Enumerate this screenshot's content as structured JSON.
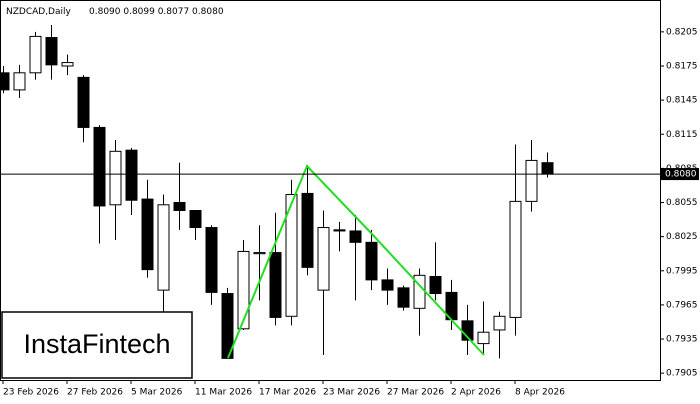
{
  "chart_data": {
    "type": "candlestick",
    "title": "NZDCAD,Daily",
    "subtitle": "0.8090 0.8099 0.8077 0.8080",
    "logo": "InstaFintech",
    "categories": [
      "23 Feb 2026",
      null,
      null,
      null,
      "27 Feb 2026",
      null,
      null,
      null,
      "5 Mar 2026",
      null,
      null,
      null,
      "11 Mar 2026",
      null,
      null,
      null,
      "17 Mar 2026",
      null,
      null,
      null,
      "23 Mar 2026",
      null,
      null,
      null,
      "27 Mar 2026",
      null,
      null,
      null,
      "2 Apr 2026",
      null,
      null,
      null,
      "8 Apr 2026",
      null,
      null
    ],
    "open": [
      0.8169,
      0.8154,
      0.8169,
      0.82,
      0.8175,
      0.8165,
      0.8121,
      0.8053,
      0.8101,
      0.8058,
      0.7978,
      0.8055,
      0.8048,
      0.8033,
      0.7975,
      0.7944,
      0.801,
      0.8011,
      0.7955,
      0.8063,
      0.7978,
      0.8031,
      0.803,
      0.802,
      0.7987,
      0.798,
      0.7962,
      0.799,
      0.7976,
      0.7951,
      0.7931,
      0.7943,
      0.7954,
      0.8056,
      0.809
    ],
    "high": [
      0.8175,
      0.8176,
      0.8205,
      0.8211,
      0.8185,
      0.8167,
      0.8123,
      0.811,
      0.8103,
      0.8075,
      0.8062,
      0.809,
      0.8048,
      0.8035,
      0.798,
      0.8022,
      0.8035,
      0.8046,
      0.8075,
      0.8088,
      0.8048,
      0.8038,
      0.8044,
      0.8031,
      0.7997,
      0.7982,
      0.7997,
      0.802,
      0.7987,
      0.7965,
      0.7968,
      0.7959,
      0.8106,
      0.811,
      0.8099
    ],
    "low": [
      0.8151,
      0.8147,
      0.8163,
      0.8163,
      0.8167,
      0.8108,
      0.8019,
      0.8022,
      0.8044,
      0.7989,
      0.7934,
      0.8031,
      0.8022,
      0.7965,
      0.7918,
      0.7943,
      0.7969,
      0.7947,
      0.7947,
      0.7991,
      0.7921,
      0.8012,
      0.7969,
      0.7978,
      0.7965,
      0.796,
      0.7938,
      0.7969,
      0.7943,
      0.7921,
      0.7921,
      0.7918,
      0.7938,
      0.8047,
      0.8077
    ],
    "close": [
      0.8154,
      0.8169,
      0.8201,
      0.8176,
      0.8178,
      0.8121,
      0.8052,
      0.81,
      0.8057,
      0.7996,
      0.8053,
      0.8048,
      0.8033,
      0.7976,
      0.7918,
      0.8012,
      0.8011,
      0.7954,
      0.8062,
      0.7998,
      0.8033,
      0.803,
      0.802,
      0.7987,
      0.7978,
      0.7963,
      0.7991,
      0.7975,
      0.7952,
      0.7934,
      0.7941,
      0.7955,
      0.8056,
      0.8092,
      0.808
    ],
    "up_color": "#ffffff",
    "down_color": "#000000",
    "ylim": [
      0.7899,
      0.8233
    ],
    "yticks": [
      0.7905,
      0.7935,
      0.7965,
      0.7995,
      0.8025,
      0.8055,
      0.8085,
      0.8115,
      0.8145,
      0.8175,
      0.8205
    ],
    "current_price": {
      "value": 0.808,
      "label": "0.8080"
    }
  }
}
